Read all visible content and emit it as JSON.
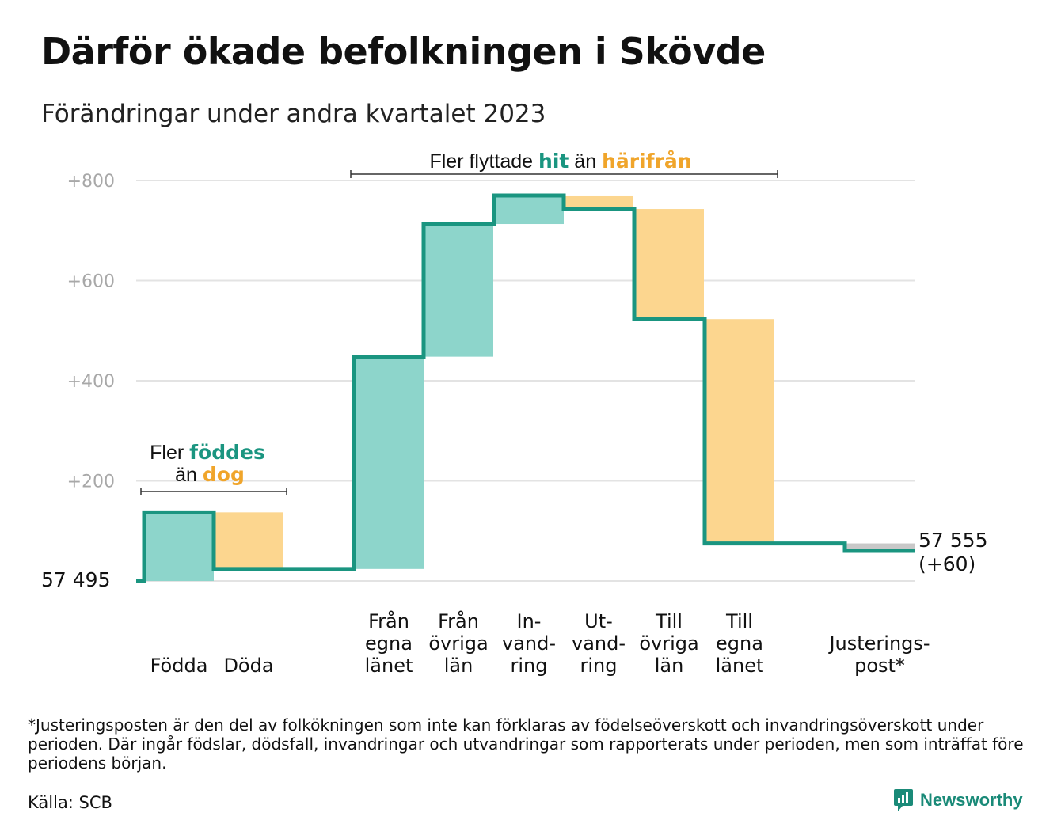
{
  "title": "Därför ökade befolkningen i Skövde",
  "subtitle": "Förändringar under andra kvartalet 2023",
  "footnote": "*Justeringsposten är den del av folkökningen som inte kan förklaras av födelseöverskott och invandringsöverskott under perioden. Där ingår födslar, dödsfall, invandringar och utvandringar som rapporterats under perioden, men som inträffat före periodens början.",
  "source": "Källa: SCB",
  "brand": "Newsworthy",
  "colors": {
    "positive": "#8dd5cb",
    "negative": "#fcd68f",
    "adjustment": "#c8c8c8",
    "line": "#1a9580",
    "teal_text": "#1a9580",
    "orange_text": "#f0a52b",
    "axis_text": "#a8a8a8",
    "grid": "#e3e3e3"
  },
  "chart_data": {
    "type": "bar",
    "subtype": "waterfall",
    "start_label": "57  495",
    "end_label_value": "57 555",
    "end_label_change": "(+60)",
    "yticks": [
      "+200",
      "+400",
      "+600",
      "+800"
    ],
    "ytick_values": [
      200,
      400,
      600,
      800
    ],
    "ylim": [
      0,
      800
    ],
    "steps": [
      {
        "label": [
          "Födda"
        ],
        "delta": 137,
        "kind": "positive"
      },
      {
        "label": [
          "Döda"
        ],
        "delta": -113,
        "kind": "negative"
      },
      {
        "label": [
          "Från",
          "egna",
          "länet"
        ],
        "delta": 424,
        "kind": "positive"
      },
      {
        "label": [
          "Från",
          "övriga",
          "län"
        ],
        "delta": 265,
        "kind": "positive"
      },
      {
        "label": [
          "In-",
          "vand-",
          "ring"
        ],
        "delta": 57,
        "kind": "positive"
      },
      {
        "label": [
          "Ut-",
          "vand-",
          "ring"
        ],
        "delta": -27,
        "kind": "negative"
      },
      {
        "label": [
          "Till",
          "övriga",
          "län"
        ],
        "delta": -220,
        "kind": "negative"
      },
      {
        "label": [
          "Till",
          "egna",
          "länet"
        ],
        "delta": -448,
        "kind": "negative"
      },
      {
        "label": [
          "Justerings-",
          "post*"
        ],
        "delta": -15,
        "kind": "adjustment"
      }
    ],
    "annotations": [
      {
        "parts": [
          {
            "text": "Fler ",
            "style": "plain"
          },
          {
            "text": "föddes",
            "style": "teal"
          }
        ],
        "parts2": [
          {
            "text": "än ",
            "style": "plain"
          },
          {
            "text": "dog",
            "style": "orange"
          }
        ]
      },
      {
        "parts": [
          {
            "text": "Fler flyttade ",
            "style": "plain"
          },
          {
            "text": "hit",
            "style": "teal"
          },
          {
            "text": "  än ",
            "style": "plain"
          },
          {
            "text": "härifrån",
            "style": "orange"
          }
        ]
      }
    ]
  }
}
